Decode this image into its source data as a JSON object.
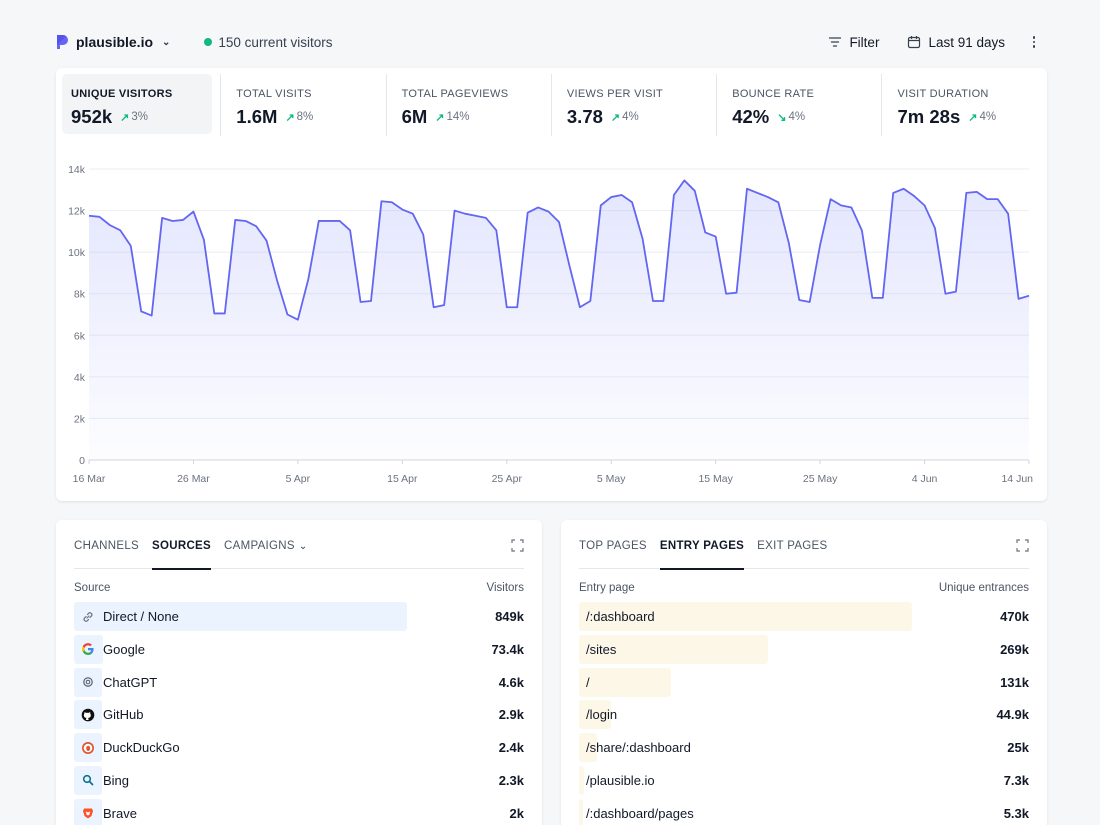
{
  "header": {
    "site_name": "plausible.io",
    "live_visitors": "150 current visitors",
    "filter_label": "Filter",
    "period_label": "Last 91 days"
  },
  "stats": [
    {
      "label": "UNIQUE VISITORS",
      "value": "952k",
      "change": "3%",
      "direction": "up",
      "active": true
    },
    {
      "label": "TOTAL VISITS",
      "value": "1.6M",
      "change": "8%",
      "direction": "up"
    },
    {
      "label": "TOTAL PAGEVIEWS",
      "value": "6M",
      "change": "14%",
      "direction": "up"
    },
    {
      "label": "VIEWS PER VISIT",
      "value": "3.78",
      "change": "4%",
      "direction": "up"
    },
    {
      "label": "BOUNCE RATE",
      "value": "42%",
      "change": "4%",
      "direction": "down"
    },
    {
      "label": "VISIT DURATION",
      "value": "7m 28s",
      "change": "4%",
      "direction": "up"
    }
  ],
  "chart_data": {
    "type": "area",
    "title": "",
    "xlabel": "",
    "ylabel": "",
    "ylim": [
      0,
      14000
    ],
    "y_ticks": [
      "0",
      "2k",
      "4k",
      "6k",
      "8k",
      "10k",
      "12k",
      "14k"
    ],
    "y_tick_values": [
      0,
      2000,
      4000,
      6000,
      8000,
      10000,
      12000,
      14000
    ],
    "x_tick_labels": [
      "16 Mar",
      "26 Mar",
      "5 Apr",
      "15 Apr",
      "25 Apr",
      "5 May",
      "15 May",
      "25 May",
      "4 Jun",
      "14 Jun"
    ],
    "x_tick_day_offsets": [
      0,
      10,
      20,
      30,
      40,
      50,
      60,
      70,
      80,
      90
    ],
    "grid": true,
    "color": "#6366f1",
    "series": [
      {
        "name": "",
        "values": [
          11750,
          11700,
          11300,
          11050,
          10300,
          7150,
          6950,
          11650,
          11500,
          11550,
          11950,
          10600,
          7050,
          7050,
          11550,
          11500,
          11250,
          10550,
          8650,
          7000,
          6750,
          8700,
          11500,
          11500,
          11500,
          11050,
          7600,
          7650,
          12450,
          12400,
          12050,
          11850,
          10850,
          7350,
          7450,
          12000,
          11850,
          11750,
          11650,
          11050,
          7350,
          7350,
          11900,
          12150,
          11950,
          11450,
          9350,
          7350,
          7650,
          12250,
          12650,
          12750,
          12400,
          10650,
          7650,
          7650,
          12750,
          13450,
          12950,
          10950,
          10750,
          8000,
          8050,
          13050,
          12850,
          12650,
          12400,
          10450,
          7700,
          7600,
          10350,
          12550,
          12250,
          12150,
          11050,
          7800,
          7800,
          12850,
          13050,
          12700,
          12250,
          11150,
          8000,
          8100,
          12850,
          12900,
          12550,
          12550,
          11850,
          7750,
          7900
        ]
      }
    ]
  },
  "sources_panel": {
    "tabs": [
      {
        "label": "CHANNELS",
        "active": false
      },
      {
        "label": "SOURCES",
        "active": true
      },
      {
        "label": "CAMPAIGNS",
        "active": false,
        "dropdown": true
      }
    ],
    "col_left": "Source",
    "col_right": "Visitors",
    "rows": [
      {
        "label": "Direct / None",
        "value": "849k",
        "fraction": 0.74,
        "icon": "link-icon"
      },
      {
        "label": "Google",
        "value": "73.4k",
        "fraction": 0.064,
        "icon": "google-icon"
      },
      {
        "label": "ChatGPT",
        "value": "4.6k",
        "fraction": 0.004,
        "icon": "chatgpt-icon"
      },
      {
        "label": "GitHub",
        "value": "2.9k",
        "fraction": 0.003,
        "icon": "github-icon"
      },
      {
        "label": "DuckDuckGo",
        "value": "2.4k",
        "fraction": 0.002,
        "icon": "duckduckgo-icon"
      },
      {
        "label": "Bing",
        "value": "2.3k",
        "fraction": 0.002,
        "icon": "bing-icon"
      },
      {
        "label": "Brave",
        "value": "2k",
        "fraction": 0.002,
        "icon": "brave-icon"
      }
    ]
  },
  "pages_panel": {
    "tabs": [
      {
        "label": "TOP PAGES",
        "active": false
      },
      {
        "label": "ENTRY PAGES",
        "active": true
      },
      {
        "label": "EXIT PAGES",
        "active": false
      }
    ],
    "col_left": "Entry page",
    "col_right": "Unique entrances",
    "rows": [
      {
        "label": "/:dashboard",
        "value": "470k",
        "fraction": 0.74
      },
      {
        "label": "/sites",
        "value": "269k",
        "fraction": 0.42
      },
      {
        "label": "/",
        "value": "131k",
        "fraction": 0.205
      },
      {
        "label": "/login",
        "value": "44.9k",
        "fraction": 0.07
      },
      {
        "label": "/share/:dashboard",
        "value": "25k",
        "fraction": 0.039
      },
      {
        "label": "/plausible.io",
        "value": "7.3k",
        "fraction": 0.012
      },
      {
        "label": "/:dashboard/pages",
        "value": "5.3k",
        "fraction": 0.008
      }
    ]
  }
}
